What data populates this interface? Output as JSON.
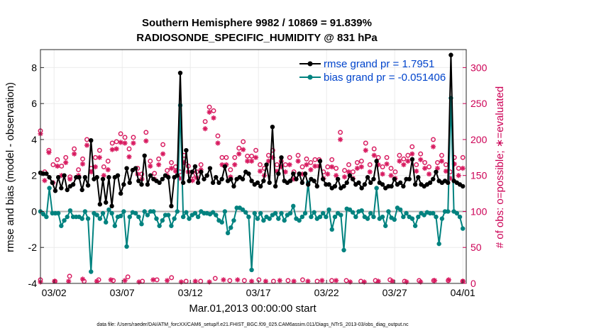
{
  "chart_data": {
    "type": "line",
    "title_line1": "Southern Hemisphere 9982 / 10869 = 91.839%",
    "title_line2": "RADIOSONDE_SPECIFIC_HUMIDITY @ 831 hPa",
    "ylabel_left": "rmse and bias (model - observation)",
    "ylabel_right": "# of obs: o=possible; ∗=evaluated",
    "xlabel": "Mar.01,2013 00:00:00 start",
    "footnote": "data file: /Users/raeder/DAI/ATM_forcXX/CAM6_setup/f.e21.FHIST_BGC.f09_025.CAM6assim.011/Diags_NTrS_2013-03/obs_diag_output.nc",
    "x_ticks": [
      {
        "x": 2,
        "label": "03/02"
      },
      {
        "x": 7,
        "label": "03/07"
      },
      {
        "x": 12,
        "label": "03/12"
      },
      {
        "x": 17,
        "label": "03/17"
      },
      {
        "x": 22,
        "label": "03/22"
      },
      {
        "x": 27,
        "label": "03/27"
      },
      {
        "x": 32,
        "label": "04/01"
      }
    ],
    "xlim": [
      1,
      32.25
    ],
    "ylim_left": [
      -4,
      9
    ],
    "ylim_right": [
      0,
      325
    ],
    "yticks_left": [
      -4,
      -2,
      0,
      2,
      4,
      6,
      8
    ],
    "yticks_right": [
      0,
      50,
      100,
      150,
      200,
      250,
      300
    ],
    "legend": [
      {
        "name": "rmse grand pr = 1.7951",
        "color": "#000000"
      },
      {
        "name": "bias grand pr = -0.051406",
        "color": "#00827f"
      }
    ],
    "colors": {
      "rmse": "#000000",
      "bias": "#00827f",
      "obs": "#d81b60",
      "zero_line": "#b3b3b3",
      "legend_text": "#0044cc",
      "right_axis": "#cc0055"
    },
    "series": {
      "rmse": [
        2.15,
        2.1,
        2.1,
        1.9,
        1.6,
        1.15,
        1.9,
        1.3,
        2.0,
        1.2,
        1.4,
        1.5,
        1.9,
        1.9,
        1.2,
        1.9,
        1.45,
        3.95,
        1.8,
        1.9,
        0.4,
        1.8,
        0.5,
        1.9,
        0.3,
        1.9,
        2.0,
        1.0,
        1.5,
        2.4,
        1.6,
        2.3,
        2.4,
        1.7,
        1.5,
        3.1,
        1.5,
        2.0,
        1.8,
        1.7,
        1.6,
        1.8,
        2.0,
        1.9,
        0.3,
        1.9,
        2.0,
        7.7,
        1.6,
        3.4,
        1.7,
        2.2,
        2.5,
        1.6,
        2.2,
        1.8,
        2.0,
        2.4,
        1.6,
        1.9,
        1.6,
        1.8,
        2.5,
        1.7,
        1.8,
        1.4,
        1.8,
        1.9,
        1.8,
        2.2,
        2.1,
        1.7,
        1.5,
        1.6,
        1.4,
        1.7,
        2.6,
        1.6,
        4.7,
        1.4,
        2.1,
        3.0,
        1.7,
        1.6,
        1.7,
        2.1,
        1.8,
        2.1,
        1.6,
        2.1,
        1.5,
        1.8,
        1.7,
        1.4,
        2.8,
        1.8,
        1.5,
        1.5,
        1.3,
        1.4,
        1.8,
        1.3,
        1.4,
        1.6,
        2.0,
        1.8,
        1.5,
        1.6,
        1.3,
        1.5,
        1.9,
        1.6,
        1.8,
        2.8,
        1.6,
        1.5,
        1.3,
        1.4,
        1.4,
        1.8,
        1.5,
        1.6,
        1.4,
        1.8,
        1.8,
        2.9,
        1.5,
        1.9,
        1.5,
        1.4,
        1.5,
        1.6,
        1.8,
        2.2,
        1.7,
        1.6,
        1.7,
        1.6,
        8.7,
        1.7,
        1.6,
        1.5,
        1.4
      ],
      "bias": [
        0.0,
        -0.15,
        -0.3,
        1.3,
        -0.1,
        -0.1,
        -0.1,
        -0.8,
        -0.5,
        -0.3,
        0.05,
        -0.3,
        -0.3,
        -0.3,
        -0.4,
        0.0,
        -0.4,
        -3.35,
        -0.1,
        -0.2,
        -0.4,
        -0.1,
        -0.6,
        0.1,
        -0.1,
        -0.8,
        -0.3,
        -0.25,
        0.0,
        -1.95,
        -0.3,
        -0.05,
        -0.1,
        -0.3,
        -0.7,
        0.0,
        -0.2,
        0.0,
        0.0,
        -0.4,
        -0.8,
        -0.5,
        -0.2,
        -0.2,
        -0.8,
        -0.4,
        0.0,
        5.9,
        -0.3,
        -0.05,
        -0.4,
        -0.2,
        -0.1,
        -0.3,
        0.0,
        -0.1,
        -0.1,
        -0.15,
        -0.05,
        -0.2,
        -0.5,
        -0.6,
        0.0,
        -1.2,
        -0.9,
        -0.5,
        0.2,
        0.2,
        0.1,
        -0.05,
        -0.3,
        -3.25,
        -0.1,
        -0.4,
        -0.1,
        -0.5,
        -0.3,
        -0.4,
        -0.2,
        -0.1,
        -0.4,
        -0.1,
        -0.5,
        -0.2,
        -0.1,
        0.3,
        -0.4,
        -0.5,
        -0.3,
        -0.1,
        1.6,
        -0.3,
        -0.05,
        -0.4,
        -0.3,
        -0.1,
        -0.3,
        0.1,
        -1.0,
        -0.3,
        -0.1,
        -0.2,
        -2.15,
        0.15,
        0.1,
        -0.05,
        -0.3,
        0.0,
        0.05,
        -0.3,
        -0.4,
        -0.1,
        -0.3,
        1.3,
        -0.4,
        -0.3,
        -0.8,
        0.0,
        -0.35,
        -0.45,
        0.2,
        0.1,
        -0.3,
        -0.1,
        -0.3,
        -0.4,
        -0.8,
        -0.3,
        -0.1,
        -0.2,
        -0.05,
        -0.1,
        -0.1,
        -0.3,
        -1.8,
        -0.4,
        0.0,
        0.0,
        6.3,
        0.0,
        -0.1,
        -0.3,
        -0.95
      ],
      "obs_possible": [
        5,
        3,
        10,
        3,
        5,
        4,
        9,
        3,
        5,
        8,
        3,
        3,
        7,
        4,
        4,
        5,
        3,
        4,
        5,
        3,
        4,
        4,
        3,
        4,
        5,
        3,
        4,
        4,
        4,
        3
      ],
      "obs_evaluated": [
        2,
        3,
        3,
        6,
        3,
        5,
        4,
        2,
        5,
        4,
        2,
        3,
        2,
        5,
        5,
        3,
        3,
        4,
        3,
        3,
        4,
        4,
        2,
        2,
        3,
        3,
        2,
        2,
        4,
        5,
        3
      ],
      "obs_possible_main": [
        212,
        155,
        185,
        165,
        172,
        163,
        175,
        148,
        187,
        158,
        173,
        200,
        160,
        175,
        185,
        162,
        170,
        195,
        197,
        208,
        203,
        187,
        203,
        160,
        152,
        210,
        170,
        153,
        173,
        193,
        157,
        168,
        162,
        155,
        178,
        163,
        150,
        155,
        165,
        225,
        245,
        240,
        205,
        175,
        175,
        158,
        175,
        188,
        197,
        177,
        177,
        185,
        165,
        160,
        178,
        185,
        165,
        170,
        165,
        175,
        155,
        178,
        162,
        173,
        168,
        172,
        172,
        155,
        162,
        172,
        160,
        210,
        157,
        165,
        155,
        168,
        170,
        195,
        165,
        187,
        175,
        162,
        175,
        160,
        155,
        178,
        173,
        178,
        190,
        165,
        180,
        168,
        162,
        200,
        168,
        178,
        165,
        155,
        175,
        160,
        175
      ],
      "obs_evaluated_main": [
        208,
        143,
        182,
        140,
        163,
        150,
        168,
        145,
        180,
        150,
        166,
        192,
        155,
        162,
        175,
        150,
        158,
        186,
        187,
        196,
        195,
        176,
        195,
        152,
        145,
        198,
        163,
        145,
        165,
        180,
        150,
        160,
        156,
        146,
        168,
        155,
        143,
        147,
        158,
        215,
        238,
        230,
        195,
        165,
        165,
        148,
        165,
        180,
        186,
        170,
        170,
        175,
        156,
        150,
        170,
        175,
        156,
        162,
        155,
        165,
        145,
        170,
        152,
        165,
        158,
        163,
        163,
        146,
        152,
        162,
        150,
        200,
        148,
        155,
        146,
        160,
        162,
        185,
        155,
        178,
        165,
        152,
        166,
        150,
        146,
        170,
        165,
        170,
        180,
        156,
        172,
        160,
        152,
        190,
        160,
        170,
        156,
        146,
        166,
        150,
        160
      ]
    }
  }
}
